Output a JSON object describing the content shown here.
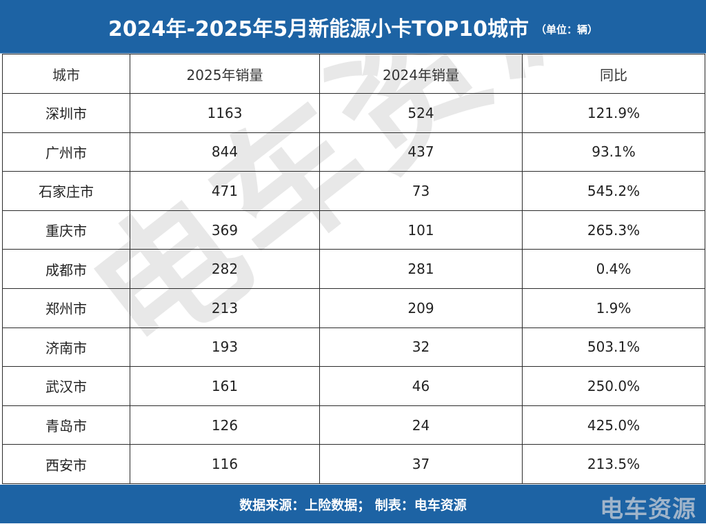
{
  "title": {
    "main": "2024年-2025年5月新能源小卡TOP10城市",
    "unit": "（单位：辆）"
  },
  "table": {
    "headers": [
      "城市",
      "2025年销量",
      "2024年销量",
      "同比"
    ],
    "rows": [
      {
        "city": "深圳市",
        "sales_2025": "1163",
        "sales_2024": "524",
        "yoy": "121.9%"
      },
      {
        "city": "广州市",
        "sales_2025": "844",
        "sales_2024": "437",
        "yoy": "93.1%"
      },
      {
        "city": "石家庄市",
        "sales_2025": "471",
        "sales_2024": "73",
        "yoy": "545.2%"
      },
      {
        "city": "重庆市",
        "sales_2025": "369",
        "sales_2024": "101",
        "yoy": "265.3%"
      },
      {
        "city": "成都市",
        "sales_2025": "282",
        "sales_2024": "281",
        "yoy": "0.4%"
      },
      {
        "city": "郑州市",
        "sales_2025": "213",
        "sales_2024": "209",
        "yoy": "1.9%"
      },
      {
        "city": "济南市",
        "sales_2025": "193",
        "sales_2024": "32",
        "yoy": "503.1%"
      },
      {
        "city": "武汉市",
        "sales_2025": "161",
        "sales_2024": "46",
        "yoy": "250.0%"
      },
      {
        "city": "青岛市",
        "sales_2025": "126",
        "sales_2024": "24",
        "yoy": "425.0%"
      },
      {
        "city": "西安市",
        "sales_2025": "116",
        "sales_2024": "37",
        "yoy": "213.5%"
      }
    ]
  },
  "footer": {
    "source": "数据来源：上险数据；  制表：电车资源",
    "logo": "电车资源"
  },
  "watermark": "电车资源",
  "colors": {
    "banner": "#1d63a4",
    "border": "#2b2b2b",
    "text": "#222222"
  }
}
